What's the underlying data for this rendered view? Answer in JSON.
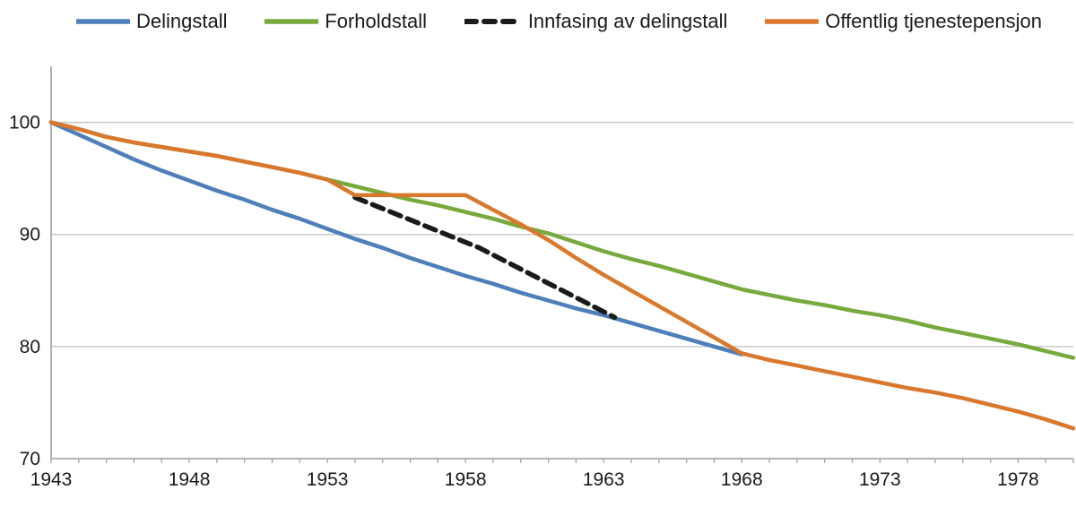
{
  "chart_data": {
    "type": "line",
    "title": "",
    "xlabel": "",
    "ylabel": "",
    "x_range": [
      1943,
      1980
    ],
    "y_range": [
      70,
      105
    ],
    "x_ticks_labeled": [
      1943,
      1948,
      1953,
      1958,
      1963,
      1968,
      1973,
      1978
    ],
    "x_minor_tick_step": 1,
    "y_ticks": [
      70,
      80,
      90,
      100
    ],
    "gridlines": "horizontal-at-80-90-100",
    "legend_position": "top",
    "colors": {
      "background": "#FFFFFF",
      "grid": "#C9C9C9",
      "axis": "#9E9E9E",
      "text": "#1A1A1A"
    },
    "series": [
      {
        "name": "Delingstall",
        "color": "#4E7FBA",
        "dash": false,
        "points": [
          [
            1943,
            100
          ],
          [
            1944,
            98.9
          ],
          [
            1945,
            97.8
          ],
          [
            1946,
            96.7
          ],
          [
            1947,
            95.7
          ],
          [
            1948,
            94.8
          ],
          [
            1949,
            93.9
          ],
          [
            1950,
            93.1
          ],
          [
            1951,
            92.2
          ],
          [
            1952,
            91.4
          ],
          [
            1953,
            90.5
          ],
          [
            1954,
            89.6
          ],
          [
            1955,
            88.8
          ],
          [
            1956,
            87.9
          ],
          [
            1957,
            87.1
          ],
          [
            1958,
            86.3
          ],
          [
            1959,
            85.6
          ],
          [
            1960,
            84.8
          ],
          [
            1961,
            84.1
          ],
          [
            1962,
            83.4
          ],
          [
            1963,
            82.8
          ],
          [
            1964,
            82.1
          ],
          [
            1965,
            81.4
          ],
          [
            1966,
            80.7
          ],
          [
            1967,
            80.0
          ],
          [
            1968,
            79.3
          ]
        ]
      },
      {
        "name": "Forholdstall",
        "color": "#77A93C",
        "dash": false,
        "points": [
          [
            1943,
            100
          ],
          [
            1944,
            99.4
          ],
          [
            1945,
            98.7
          ],
          [
            1946,
            98.2
          ],
          [
            1947,
            97.8
          ],
          [
            1948,
            97.4
          ],
          [
            1949,
            97.0
          ],
          [
            1950,
            96.5
          ],
          [
            1951,
            96.0
          ],
          [
            1952,
            95.5
          ],
          [
            1953,
            94.9
          ],
          [
            1954,
            94.3
          ],
          [
            1955,
            93.7
          ],
          [
            1956,
            93.1
          ],
          [
            1957,
            92.6
          ],
          [
            1958,
            92.0
          ],
          [
            1959,
            91.4
          ],
          [
            1960,
            90.7
          ],
          [
            1961,
            90.1
          ],
          [
            1962,
            89.3
          ],
          [
            1963,
            88.5
          ],
          [
            1964,
            87.8
          ],
          [
            1965,
            87.2
          ],
          [
            1966,
            86.5
          ],
          [
            1967,
            85.8
          ],
          [
            1968,
            85.1
          ],
          [
            1969,
            84.6
          ],
          [
            1970,
            84.1
          ],
          [
            1971,
            83.7
          ],
          [
            1972,
            83.2
          ],
          [
            1973,
            82.8
          ],
          [
            1974,
            82.3
          ],
          [
            1975,
            81.7
          ],
          [
            1976,
            81.2
          ],
          [
            1977,
            80.7
          ],
          [
            1978,
            80.2
          ],
          [
            1979,
            79.6
          ],
          [
            1980,
            79.0
          ]
        ]
      },
      {
        "name": "Innfasing av delingstall",
        "color": "#1A1A1A",
        "dash": true,
        "points": [
          [
            1954,
            93.3
          ],
          [
            1958.5,
            88.8
          ],
          [
            1963.4,
            82.6
          ]
        ]
      },
      {
        "name": "Offentlig tjenestepensjon",
        "color": "#D9782D",
        "dash": false,
        "points": [
          [
            1943,
            100
          ],
          [
            1944,
            99.4
          ],
          [
            1945,
            98.7
          ],
          [
            1946,
            98.2
          ],
          [
            1947,
            97.8
          ],
          [
            1948,
            97.4
          ],
          [
            1949,
            97.0
          ],
          [
            1950,
            96.5
          ],
          [
            1951,
            96.0
          ],
          [
            1952,
            95.5
          ],
          [
            1953,
            94.9
          ],
          [
            1954,
            93.5
          ],
          [
            1955,
            93.5
          ],
          [
            1956,
            93.5
          ],
          [
            1957,
            93.5
          ],
          [
            1958,
            93.5
          ],
          [
            1959,
            92.2
          ],
          [
            1960,
            90.9
          ],
          [
            1961,
            89.5
          ],
          [
            1962,
            87.9
          ],
          [
            1963,
            86.4
          ],
          [
            1964,
            85.0
          ],
          [
            1965,
            83.6
          ],
          [
            1966,
            82.2
          ],
          [
            1967,
            80.8
          ],
          [
            1968,
            79.4
          ],
          [
            1969,
            78.8
          ],
          [
            1970,
            78.3
          ],
          [
            1971,
            77.8
          ],
          [
            1972,
            77.3
          ],
          [
            1973,
            76.8
          ],
          [
            1974,
            76.3
          ],
          [
            1975,
            75.9
          ],
          [
            1976,
            75.4
          ],
          [
            1977,
            74.8
          ],
          [
            1978,
            74.2
          ],
          [
            1979,
            73.5
          ],
          [
            1980,
            72.7
          ]
        ]
      }
    ]
  }
}
